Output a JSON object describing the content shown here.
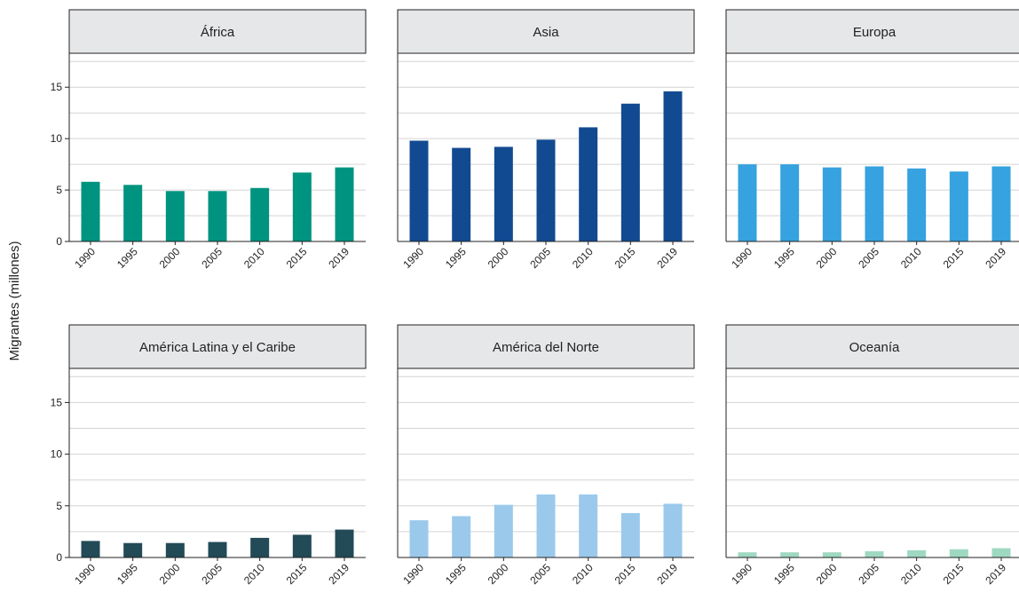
{
  "chart_data": {
    "type": "bar",
    "layout": "facet-grid-2x3",
    "ylabel": "Migrantes (millones)",
    "ylim": [
      0,
      18.3
    ],
    "yticks": [
      0,
      5,
      10,
      15
    ],
    "grid": true,
    "categories": [
      "1990",
      "1995",
      "2000",
      "2005",
      "2010",
      "2015",
      "2019"
    ],
    "panels": [
      {
        "title": "África",
        "color": "#00937F",
        "values": [
          5.8,
          5.5,
          4.9,
          4.9,
          5.2,
          6.7,
          7.2
        ]
      },
      {
        "title": "Asia",
        "color": "#124A91",
        "values": [
          9.8,
          9.1,
          9.2,
          9.9,
          11.1,
          13.4,
          14.6
        ]
      },
      {
        "title": "Europa",
        "color": "#36A2DF",
        "values": [
          7.5,
          7.5,
          7.2,
          7.3,
          7.1,
          6.8,
          7.3
        ]
      },
      {
        "title": "América Latina y el Caribe",
        "color": "#224A57",
        "values": [
          1.6,
          1.4,
          1.4,
          1.5,
          1.9,
          2.2,
          2.7
        ]
      },
      {
        "title": "América del Norte",
        "color": "#9BC9EC",
        "values": [
          3.6,
          4.0,
          5.1,
          6.1,
          6.1,
          4.3,
          5.2
        ]
      },
      {
        "title": "Oceanía",
        "color": "#9FD8C1",
        "values": [
          0.5,
          0.5,
          0.5,
          0.6,
          0.7,
          0.8,
          0.9
        ]
      }
    ]
  }
}
